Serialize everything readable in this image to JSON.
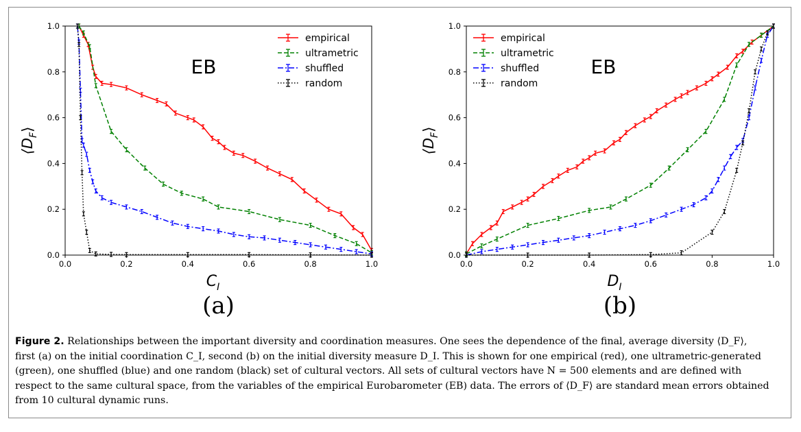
{
  "figure": {
    "caption_label": "Figure 2.",
    "caption_text": " Relationships between the important diversity and coordination measures. One sees the dependence of the final, average diversity ⟨D_F⟩, first (a) on the initial coordination C_I, second (b) on the initial diversity measure D_I. This is shown for one empirical (red), one ultrametric-generated (green), one shuffled (blue) and one random (black) set of cultural vectors. All sets of cultural vectors have N = 500 elements and are defined with respect to the same cultural space, from the variables of the empirical Eurobarometer (EB) data. The errors of ⟨D_F⟩ are standard mean errors obtained from 10 cultural dynamic runs."
  },
  "colors": {
    "empirical": "#ff0000",
    "ultrametric": "#008000",
    "shuffled": "#0000ff",
    "random": "#000000"
  },
  "chart_data": [
    {
      "type": "line",
      "panel_label": "(a)",
      "annotation": "EB",
      "xlabel": "C_I",
      "ylabel": "⟨D_F⟩",
      "xlim": [
        0.0,
        1.0
      ],
      "ylim": [
        0.0,
        1.0
      ],
      "xticks": [
        "0.0",
        "0.2",
        "0.4",
        "0.6",
        "0.8",
        "1.0"
      ],
      "yticks": [
        "0.0",
        "0.2",
        "0.4",
        "0.6",
        "0.8",
        "1.0"
      ],
      "grid": false,
      "legend_position": "top-right",
      "series": [
        {
          "name": "empirical",
          "style": "solid",
          "x": [
            0.045,
            0.06,
            0.075,
            0.09,
            0.1,
            0.12,
            0.15,
            0.2,
            0.25,
            0.3,
            0.33,
            0.36,
            0.4,
            0.42,
            0.45,
            0.48,
            0.5,
            0.52,
            0.55,
            0.58,
            0.62,
            0.66,
            0.7,
            0.74,
            0.78,
            0.82,
            0.86,
            0.9,
            0.94,
            0.97,
            1.0
          ],
          "y": [
            1.0,
            0.96,
            0.92,
            0.82,
            0.78,
            0.75,
            0.745,
            0.73,
            0.7,
            0.675,
            0.66,
            0.62,
            0.6,
            0.59,
            0.56,
            0.51,
            0.495,
            0.47,
            0.445,
            0.435,
            0.41,
            0.38,
            0.355,
            0.33,
            0.28,
            0.24,
            0.2,
            0.18,
            0.12,
            0.09,
            0.02
          ]
        },
        {
          "name": "ultrametric",
          "style": "dashed",
          "x": [
            0.045,
            0.06,
            0.08,
            0.1,
            0.15,
            0.2,
            0.26,
            0.32,
            0.38,
            0.45,
            0.5,
            0.6,
            0.7,
            0.8,
            0.88,
            0.95,
            1.0
          ],
          "y": [
            1.0,
            0.97,
            0.91,
            0.74,
            0.54,
            0.46,
            0.38,
            0.31,
            0.27,
            0.245,
            0.21,
            0.19,
            0.155,
            0.13,
            0.085,
            0.05,
            0.01
          ]
        },
        {
          "name": "shuffled",
          "style": "dashdot",
          "x": [
            0.04,
            0.045,
            0.05,
            0.055,
            0.06,
            0.07,
            0.08,
            0.09,
            0.1,
            0.12,
            0.15,
            0.2,
            0.25,
            0.3,
            0.35,
            0.4,
            0.45,
            0.5,
            0.55,
            0.6,
            0.65,
            0.7,
            0.75,
            0.8,
            0.85,
            0.9,
            0.95,
            1.0
          ],
          "y": [
            1.0,
            0.93,
            0.72,
            0.5,
            0.48,
            0.44,
            0.37,
            0.32,
            0.28,
            0.25,
            0.23,
            0.21,
            0.19,
            0.165,
            0.14,
            0.125,
            0.115,
            0.105,
            0.09,
            0.08,
            0.075,
            0.065,
            0.055,
            0.045,
            0.035,
            0.025,
            0.015,
            0.005
          ]
        },
        {
          "name": "random",
          "style": "dotted",
          "x": [
            0.04,
            0.045,
            0.05,
            0.055,
            0.06,
            0.07,
            0.08,
            0.1,
            0.15,
            0.2,
            0.4,
            0.6,
            0.8,
            1.0
          ],
          "y": [
            1.0,
            0.92,
            0.6,
            0.36,
            0.18,
            0.1,
            0.02,
            0.005,
            0.003,
            0.002,
            0.002,
            0.002,
            0.001,
            0.0
          ]
        }
      ]
    },
    {
      "type": "line",
      "panel_label": "(b)",
      "annotation": "EB",
      "xlabel": "D_I",
      "ylabel": "⟨D_F⟩",
      "xlim": [
        0.0,
        1.0
      ],
      "ylim": [
        0.0,
        1.0
      ],
      "xticks": [
        "0.0",
        "0.2",
        "0.4",
        "0.6",
        "0.8",
        "1.0"
      ],
      "yticks": [
        "0.0",
        "0.2",
        "0.4",
        "0.6",
        "0.8",
        "1.0"
      ],
      "grid": false,
      "legend_position": "top-left",
      "series": [
        {
          "name": "empirical",
          "style": "solid",
          "x": [
            0.0,
            0.02,
            0.05,
            0.08,
            0.1,
            0.12,
            0.15,
            0.18,
            0.2,
            0.22,
            0.25,
            0.28,
            0.3,
            0.33,
            0.36,
            0.38,
            0.4,
            0.42,
            0.45,
            0.48,
            0.5,
            0.52,
            0.55,
            0.58,
            0.6,
            0.62,
            0.65,
            0.68,
            0.7,
            0.72,
            0.75,
            0.78,
            0.8,
            0.82,
            0.85,
            0.88,
            0.9,
            0.93,
            0.96,
            1.0
          ],
          "y": [
            0.005,
            0.05,
            0.09,
            0.12,
            0.14,
            0.19,
            0.21,
            0.23,
            0.245,
            0.265,
            0.3,
            0.325,
            0.345,
            0.37,
            0.385,
            0.41,
            0.425,
            0.445,
            0.455,
            0.49,
            0.505,
            0.535,
            0.565,
            0.59,
            0.605,
            0.63,
            0.655,
            0.68,
            0.695,
            0.71,
            0.73,
            0.75,
            0.77,
            0.79,
            0.82,
            0.87,
            0.89,
            0.93,
            0.96,
            1.0
          ]
        },
        {
          "name": "ultrametric",
          "style": "dashed",
          "x": [
            0.0,
            0.05,
            0.1,
            0.2,
            0.3,
            0.4,
            0.47,
            0.52,
            0.6,
            0.66,
            0.72,
            0.78,
            0.84,
            0.88,
            0.92,
            0.96,
            1.0
          ],
          "y": [
            0.005,
            0.04,
            0.07,
            0.13,
            0.16,
            0.195,
            0.21,
            0.245,
            0.305,
            0.38,
            0.46,
            0.54,
            0.68,
            0.83,
            0.92,
            0.96,
            1.0
          ]
        },
        {
          "name": "shuffled",
          "style": "dashdot",
          "x": [
            0.0,
            0.05,
            0.1,
            0.15,
            0.2,
            0.25,
            0.3,
            0.35,
            0.4,
            0.45,
            0.5,
            0.55,
            0.6,
            0.65,
            0.7,
            0.74,
            0.78,
            0.8,
            0.82,
            0.84,
            0.86,
            0.88,
            0.9,
            0.92,
            0.94,
            0.96,
            0.98,
            1.0
          ],
          "y": [
            0.0,
            0.015,
            0.025,
            0.035,
            0.045,
            0.055,
            0.065,
            0.075,
            0.085,
            0.1,
            0.115,
            0.13,
            0.15,
            0.175,
            0.2,
            0.22,
            0.25,
            0.28,
            0.33,
            0.38,
            0.43,
            0.47,
            0.5,
            0.6,
            0.73,
            0.85,
            0.96,
            1.0
          ]
        },
        {
          "name": "random",
          "style": "dotted",
          "x": [
            0.0,
            0.2,
            0.4,
            0.6,
            0.7,
            0.8,
            0.84,
            0.88,
            0.9,
            0.92,
            0.94,
            0.96,
            0.98,
            1.0
          ],
          "y": [
            0.0,
            0.0,
            0.0,
            0.002,
            0.01,
            0.1,
            0.19,
            0.37,
            0.49,
            0.63,
            0.8,
            0.9,
            0.97,
            1.0
          ]
        }
      ]
    }
  ]
}
